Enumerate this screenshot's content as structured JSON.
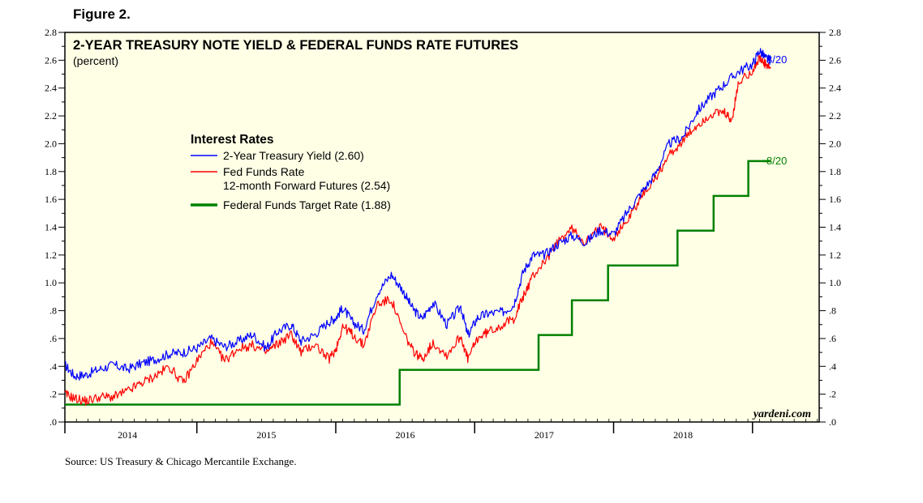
{
  "figure_label": "Figure 2.",
  "source": "Source: US Treasury & Chicago Mercantile Exchange.",
  "watermark": "yardeni.com",
  "colors": {
    "treasury": "#0000ff",
    "futures": "#ff0000",
    "target": "#008000",
    "plot_bg": "#ffffe6"
  },
  "chart_data": {
    "type": "line",
    "title": "2-YEAR TREASURY NOTE YIELD & FEDERAL FUNDS RATE FUTURES",
    "subtitle": "(percent)",
    "xlabel": "",
    "ylabel": "",
    "xlim": [
      2013.55,
      2018.98
    ],
    "ylim": [
      0,
      2.8
    ],
    "x_ticks": [
      "2014",
      "2015",
      "2016",
      "2017",
      "2018"
    ],
    "y_ticks_left": [
      ".0",
      ".2",
      ".4",
      ".6",
      ".8",
      "1.0",
      "1.2",
      "1.4",
      "1.6",
      "1.8",
      "2.0",
      "2.2",
      "2.4",
      "2.6",
      "2.8"
    ],
    "y_ticks_right": [
      ".0",
      ".2",
      ".4",
      ".6",
      ".8",
      "1.0",
      "1.2",
      "1.4",
      "1.6",
      "1.8",
      "2.0",
      "2.2",
      "2.4",
      "2.6",
      "2.8"
    ],
    "legend": {
      "title": "Interest Rates",
      "entries": [
        {
          "line1": "2-Year Treasury Yield (2.60)",
          "line2": ""
        },
        {
          "line1": "Fed Funds Rate",
          "line2": "12-month Forward Futures (2.54)"
        },
        {
          "line1": "Federal Funds Target Rate (1.88)",
          "line2": ""
        }
      ]
    },
    "end_labels": {
      "top": "8/20",
      "target": "8/20"
    },
    "series": [
      {
        "name": "2-Year Treasury Yield",
        "x": [
          2013.55,
          2013.62,
          2013.7,
          2013.8,
          2013.9,
          2014.0,
          2014.1,
          2014.2,
          2014.3,
          2014.4,
          2014.5,
          2014.6,
          2014.7,
          2014.8,
          2014.9,
          2015.0,
          2015.08,
          2015.18,
          2015.25,
          2015.35,
          2015.45,
          2015.5,
          2015.55,
          2015.62,
          2015.7,
          2015.8,
          2015.9,
          2015.98,
          2016.05,
          2016.12,
          2016.2,
          2016.3,
          2016.4,
          2016.45,
          2016.52,
          2016.6,
          2016.7,
          2016.78,
          2016.85,
          2016.92,
          2017.0,
          2017.1,
          2017.2,
          2017.3,
          2017.4,
          2017.5,
          2017.6,
          2017.7,
          2017.8,
          2017.9,
          2018.0,
          2018.1,
          2018.2,
          2018.3,
          2018.4,
          2018.5,
          2018.55,
          2018.6,
          2018.63
        ],
        "values": [
          0.41,
          0.33,
          0.34,
          0.38,
          0.41,
          0.38,
          0.42,
          0.45,
          0.49,
          0.5,
          0.53,
          0.6,
          0.54,
          0.58,
          0.63,
          0.53,
          0.65,
          0.7,
          0.58,
          0.63,
          0.72,
          0.75,
          0.82,
          0.72,
          0.66,
          0.93,
          1.06,
          0.95,
          0.82,
          0.74,
          0.86,
          0.7,
          0.83,
          0.62,
          0.75,
          0.78,
          0.79,
          0.84,
          1.08,
          1.2,
          1.2,
          1.28,
          1.34,
          1.29,
          1.38,
          1.35,
          1.51,
          1.65,
          1.78,
          2.0,
          2.05,
          2.23,
          2.34,
          2.43,
          2.52,
          2.57,
          2.67,
          2.61,
          2.6
        ]
      },
      {
        "name": "Fed Funds Rate 12-month Forward Futures",
        "x": [
          2013.55,
          2013.62,
          2013.7,
          2013.8,
          2013.9,
          2014.0,
          2014.1,
          2014.2,
          2014.3,
          2014.4,
          2014.5,
          2014.6,
          2014.7,
          2014.8,
          2014.9,
          2015.0,
          2015.08,
          2015.18,
          2015.25,
          2015.35,
          2015.45,
          2015.5,
          2015.55,
          2015.62,
          2015.7,
          2015.8,
          2015.9,
          2015.98,
          2016.05,
          2016.12,
          2016.2,
          2016.3,
          2016.4,
          2016.45,
          2016.52,
          2016.6,
          2016.7,
          2016.78,
          2016.85,
          2016.92,
          2017.0,
          2017.1,
          2017.2,
          2017.3,
          2017.4,
          2017.5,
          2017.6,
          2017.7,
          2017.8,
          2017.9,
          2018.0,
          2018.1,
          2018.2,
          2018.3,
          2018.35,
          2018.4,
          2018.5,
          2018.55,
          2018.6,
          2018.63
        ],
        "values": [
          0.2,
          0.17,
          0.15,
          0.18,
          0.18,
          0.22,
          0.28,
          0.33,
          0.4,
          0.28,
          0.44,
          0.57,
          0.44,
          0.53,
          0.55,
          0.5,
          0.56,
          0.63,
          0.5,
          0.56,
          0.45,
          0.52,
          0.69,
          0.63,
          0.55,
          0.85,
          0.88,
          0.66,
          0.52,
          0.45,
          0.57,
          0.48,
          0.62,
          0.45,
          0.6,
          0.65,
          0.7,
          0.74,
          0.9,
          1.05,
          1.15,
          1.29,
          1.39,
          1.29,
          1.4,
          1.33,
          1.45,
          1.62,
          1.75,
          1.92,
          2.02,
          2.13,
          2.21,
          2.22,
          2.16,
          2.44,
          2.53,
          2.61,
          2.56,
          2.54
        ]
      },
      {
        "name": "Federal Funds Target Rate",
        "step": true,
        "x": [
          2013.55,
          2015.96,
          2016.96,
          2017.2,
          2017.46,
          2017.96,
          2018.22,
          2018.47,
          2018.63
        ],
        "values": [
          0.125,
          0.375,
          0.625,
          0.875,
          1.125,
          1.375,
          1.625,
          1.875,
          1.875
        ]
      }
    ]
  }
}
